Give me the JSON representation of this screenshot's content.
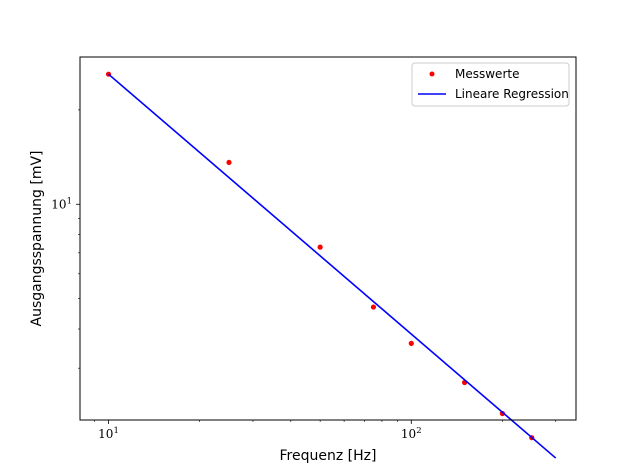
{
  "chart_data": {
    "type": "scatter",
    "title": "",
    "xlabel": "Frequenz [Hz]",
    "ylabel": "Ausgangsspannung [mV]",
    "xscale": "log",
    "yscale": "log",
    "xlim": [
      8.05,
      350
    ],
    "ylim": [
      2.05,
      29.5
    ],
    "xticks": [
      {
        "value": 10,
        "base": "10",
        "exp": "1"
      },
      {
        "value": 100,
        "base": "10",
        "exp": "2"
      }
    ],
    "yticks": [
      {
        "value": 10,
        "base": "10",
        "exp": "1"
      }
    ],
    "grid": false,
    "legend_position": "top-right",
    "series": [
      {
        "name": "Messwerte",
        "kind": "points",
        "color": "#ff0000",
        "x": [
          10,
          25,
          50,
          75,
          100,
          150,
          200,
          250
        ],
        "y": [
          26.0,
          13.6,
          7.3,
          4.7,
          3.6,
          2.7,
          2.15,
          1.8
        ]
      },
      {
        "name": "Lineare Regression",
        "kind": "line",
        "color": "#0000ff",
        "x": [
          10,
          300
        ],
        "y": [
          26.0,
          1.55
        ]
      }
    ]
  }
}
